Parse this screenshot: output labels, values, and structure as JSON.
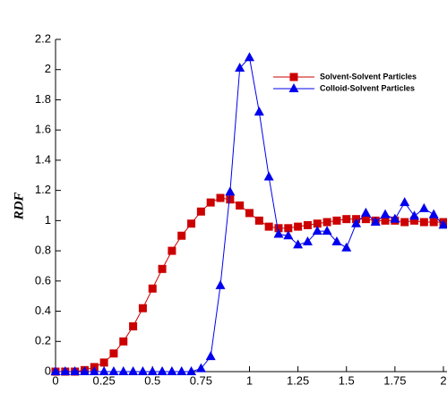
{
  "chart_data": {
    "type": "line",
    "y_label": "RDF",
    "xlim": [
      0,
      2
    ],
    "xticks": [
      0,
      0.25,
      0.5,
      0.75,
      1,
      1.25,
      1.5,
      1.75,
      2
    ],
    "ylim": [
      0,
      2.2
    ],
    "yticks": [
      0,
      0.2,
      0.4,
      0.6,
      0.8,
      1,
      1.2,
      1.4,
      1.6,
      1.8,
      2,
      2.2
    ],
    "legend": "upper right",
    "series": [
      {
        "name": "Solvent-Solvent Particles",
        "color": "#cc0000",
        "marker": "square",
        "x": [
          0,
          0.05,
          0.1,
          0.15,
          0.2,
          0.25,
          0.3,
          0.35,
          0.4,
          0.45,
          0.5,
          0.55,
          0.6,
          0.65,
          0.7,
          0.75,
          0.8,
          0.85,
          0.9,
          0.95,
          1,
          1.05,
          1.1,
          1.15,
          1.2,
          1.25,
          1.3,
          1.35,
          1.4,
          1.45,
          1.5,
          1.55,
          1.6,
          1.65,
          1.7,
          1.75,
          1.8,
          1.85,
          1.9,
          1.95,
          2
        ],
        "values": [
          0,
          0,
          0,
          0.01,
          0.03,
          0.06,
          0.12,
          0.2,
          0.3,
          0.42,
          0.55,
          0.68,
          0.8,
          0.9,
          0.98,
          1.06,
          1.12,
          1.15,
          1.14,
          1.1,
          1.05,
          1,
          0.96,
          0.95,
          0.95,
          0.96,
          0.97,
          0.98,
          0.99,
          1,
          1.01,
          1.01,
          1.01,
          1,
          1,
          1,
          0.99,
          1,
          0.99,
          0.99,
          0.99
        ]
      },
      {
        "name": "Colloid-Solvent Particles",
        "color": "#0000ee",
        "marker": "triangle",
        "x": [
          0,
          0.05,
          0.1,
          0.15,
          0.2,
          0.25,
          0.3,
          0.35,
          0.4,
          0.45,
          0.5,
          0.55,
          0.6,
          0.65,
          0.7,
          0.75,
          0.8,
          0.85,
          0.9,
          0.95,
          1,
          1.05,
          1.1,
          1.15,
          1.2,
          1.25,
          1.3,
          1.35,
          1.4,
          1.45,
          1.5,
          1.55,
          1.6,
          1.65,
          1.7,
          1.75,
          1.8,
          1.85,
          1.9,
          1.95,
          2
        ],
        "values": [
          0,
          0,
          0,
          0,
          0,
          0,
          0,
          0,
          0,
          0,
          0,
          0,
          0,
          0,
          0,
          0.02,
          0.1,
          0.57,
          1.19,
          2.01,
          2.08,
          1.72,
          1.29,
          0.91,
          0.9,
          0.84,
          0.86,
          0.93,
          0.93,
          0.86,
          0.82,
          0.98,
          1.05,
          0.99,
          1.04,
          1.01,
          1.12,
          1.03,
          1.08,
          1.04,
          0.97
        ]
      }
    ]
  }
}
